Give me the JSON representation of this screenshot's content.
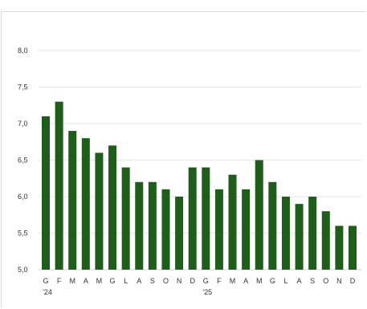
{
  "header": {
    "title": ""
  },
  "chart_data": {
    "type": "bar",
    "categories": [
      "G",
      "F",
      "M",
      "A",
      "M",
      "G",
      "L",
      "A",
      "S",
      "O",
      "N",
      "D",
      "G",
      "F",
      "M",
      "A",
      "M",
      "G",
      "L",
      "A",
      "S",
      "O",
      "N",
      "D"
    ],
    "year_labels": [
      {
        "index": 0,
        "label": "'24"
      },
      {
        "index": 12,
        "label": "'25"
      }
    ],
    "values": [
      7.1,
      7.3,
      6.9,
      6.8,
      6.6,
      6.7,
      6.4,
      6.2,
      6.2,
      6.1,
      6.0,
      6.4,
      6.4,
      6.1,
      6.3,
      6.1,
      6.5,
      6.2,
      6.0,
      5.9,
      6.0,
      5.8,
      5.6,
      5.6
    ],
    "yticks": [
      "5,0",
      "5,5",
      "6,0",
      "6,5",
      "7,0",
      "7,5",
      "8,0"
    ],
    "ylim": [
      5.0,
      8.0
    ],
    "grid": true,
    "bar_color": "#1e5e1a",
    "grid_color": "#e6e6e6",
    "title": "",
    "xlabel": "",
    "ylabel": ""
  }
}
